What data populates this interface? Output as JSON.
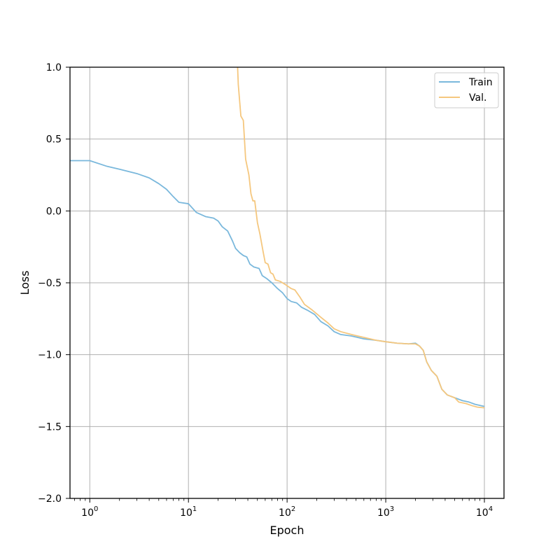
{
  "chart_data": {
    "type": "line",
    "title": "",
    "xlabel": "Epoch",
    "ylabel": "Loss",
    "xscale": "log",
    "xlim": [
      0.63,
      15800
    ],
    "ylim": [
      -2.0,
      1.0
    ],
    "grid": true,
    "legend_position": "top-right",
    "x_ticks": [
      {
        "value": 1,
        "base": "10",
        "exp": "0"
      },
      {
        "value": 10,
        "base": "10",
        "exp": "1"
      },
      {
        "value": 100,
        "base": "10",
        "exp": "2"
      },
      {
        "value": 1000,
        "base": "10",
        "exp": "3"
      },
      {
        "value": 10000,
        "base": "10",
        "exp": "4"
      }
    ],
    "y_ticks": [
      {
        "value": 1.0,
        "label": "1.0"
      },
      {
        "value": 0.5,
        "label": "0.5"
      },
      {
        "value": 0.0,
        "label": "0.0"
      },
      {
        "value": -0.5,
        "label": "−0.5"
      },
      {
        "value": -1.0,
        "label": "−1.0"
      },
      {
        "value": -1.5,
        "label": "−1.5"
      },
      {
        "value": -2.0,
        "label": "−2.0"
      }
    ],
    "series": [
      {
        "name": "Train",
        "color": "#7ab8dc",
        "points": [
          [
            0.63,
            0.35
          ],
          [
            1,
            0.35
          ],
          [
            1.5,
            0.31
          ],
          [
            2,
            0.29
          ],
          [
            3,
            0.26
          ],
          [
            4,
            0.23
          ],
          [
            5,
            0.19
          ],
          [
            6,
            0.15
          ],
          [
            7,
            0.1
          ],
          [
            8,
            0.06
          ],
          [
            10,
            0.05
          ],
          [
            12,
            -0.01
          ],
          [
            15,
            -0.04
          ],
          [
            18,
            -0.05
          ],
          [
            20,
            -0.07
          ],
          [
            22,
            -0.11
          ],
          [
            25,
            -0.14
          ],
          [
            28,
            -0.21
          ],
          [
            30,
            -0.26
          ],
          [
            33,
            -0.29
          ],
          [
            36,
            -0.31
          ],
          [
            39,
            -0.32
          ],
          [
            42,
            -0.37
          ],
          [
            46,
            -0.39
          ],
          [
            52,
            -0.4
          ],
          [
            56,
            -0.45
          ],
          [
            62,
            -0.47
          ],
          [
            70,
            -0.5
          ],
          [
            80,
            -0.54
          ],
          [
            90,
            -0.57
          ],
          [
            100,
            -0.61
          ],
          [
            110,
            -0.63
          ],
          [
            125,
            -0.64
          ],
          [
            140,
            -0.67
          ],
          [
            160,
            -0.69
          ],
          [
            190,
            -0.72
          ],
          [
            220,
            -0.77
          ],
          [
            260,
            -0.8
          ],
          [
            300,
            -0.84
          ],
          [
            350,
            -0.86
          ],
          [
            450,
            -0.87
          ],
          [
            600,
            -0.89
          ],
          [
            800,
            -0.9
          ],
          [
            1000,
            -0.91
          ],
          [
            1300,
            -0.92
          ],
          [
            1700,
            -0.925
          ],
          [
            2000,
            -0.92
          ],
          [
            2200,
            -0.94
          ],
          [
            2400,
            -0.97
          ],
          [
            2600,
            -1.05
          ],
          [
            2900,
            -1.11
          ],
          [
            3300,
            -1.15
          ],
          [
            3700,
            -1.24
          ],
          [
            4200,
            -1.28
          ],
          [
            5000,
            -1.3
          ],
          [
            6000,
            -1.32
          ],
          [
            7000,
            -1.33
          ],
          [
            8000,
            -1.345
          ],
          [
            10000,
            -1.36
          ]
        ]
      },
      {
        "name": "Val.",
        "color": "#f5c77e",
        "points": [
          [
            31.5,
            1.0
          ],
          [
            32,
            0.88
          ],
          [
            34,
            0.66
          ],
          [
            36,
            0.63
          ],
          [
            38,
            0.36
          ],
          [
            41,
            0.25
          ],
          [
            43,
            0.12
          ],
          [
            45,
            0.07
          ],
          [
            47,
            0.07
          ],
          [
            50,
            -0.08
          ],
          [
            53,
            -0.16
          ],
          [
            57,
            -0.28
          ],
          [
            60,
            -0.36
          ],
          [
            64,
            -0.37
          ],
          [
            68,
            -0.43
          ],
          [
            72,
            -0.44
          ],
          [
            76,
            -0.48
          ],
          [
            85,
            -0.49
          ],
          [
            95,
            -0.51
          ],
          [
            110,
            -0.54
          ],
          [
            120,
            -0.55
          ],
          [
            135,
            -0.6
          ],
          [
            150,
            -0.65
          ],
          [
            180,
            -0.69
          ],
          [
            220,
            -0.74
          ],
          [
            260,
            -0.78
          ],
          [
            300,
            -0.82
          ],
          [
            350,
            -0.84
          ],
          [
            450,
            -0.86
          ],
          [
            600,
            -0.88
          ],
          [
            800,
            -0.9
          ],
          [
            1000,
            -0.91
          ],
          [
            1300,
            -0.92
          ],
          [
            1700,
            -0.925
          ],
          [
            2000,
            -0.925
          ],
          [
            2200,
            -0.94
          ],
          [
            2400,
            -0.97
          ],
          [
            2600,
            -1.05
          ],
          [
            2900,
            -1.11
          ],
          [
            3300,
            -1.15
          ],
          [
            3700,
            -1.24
          ],
          [
            4200,
            -1.28
          ],
          [
            5000,
            -1.3
          ],
          [
            5500,
            -1.33
          ],
          [
            6500,
            -1.34
          ],
          [
            7500,
            -1.355
          ],
          [
            8500,
            -1.365
          ],
          [
            10000,
            -1.37
          ]
        ]
      }
    ]
  }
}
